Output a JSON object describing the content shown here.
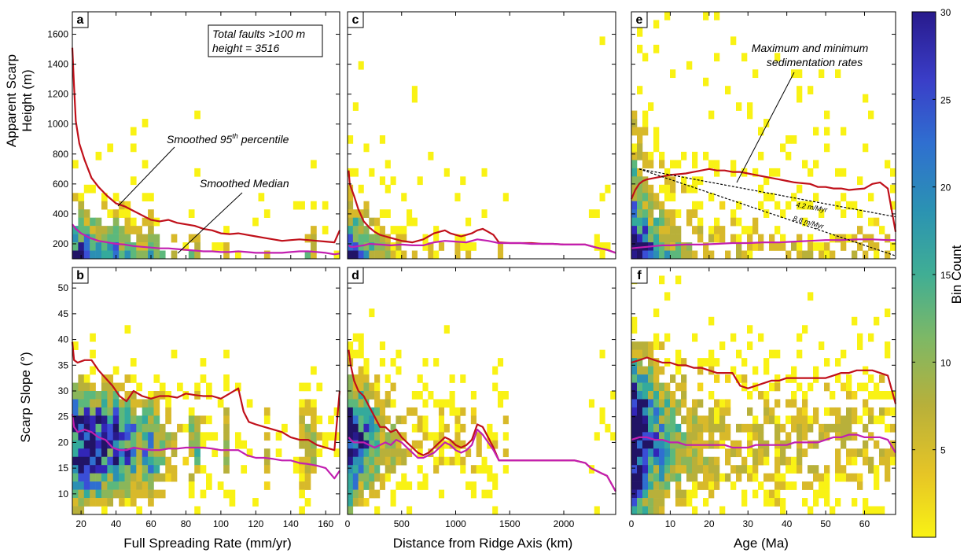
{
  "colors": {
    "p95": "#c0101a",
    "median": "#c21fb0",
    "colormap": [
      "#f9f214",
      "#f2d51c",
      "#d8b92a",
      "#b8b03a",
      "#8ab65a",
      "#5cb87c",
      "#34aa9c",
      "#2b8fb4",
      "#2f6fd0",
      "#3a4ed6",
      "#3226b8",
      "#281a8c",
      "#211466"
    ]
  },
  "colorbar": {
    "label": "Bin Count",
    "min": 0,
    "max": 30,
    "ticks": [
      "5",
      "10",
      "15",
      "20",
      "25",
      "30"
    ]
  },
  "axis_titles": {
    "top_ylabel_line1": "Apparent Scarp",
    "top_ylabel_line2": "Height (m)",
    "bottom_ylabel": "Scarp Slope (°)",
    "xlabel_left": "Full Spreading Rate (mm/yr)",
    "xlabel_mid": "Distance from Ridge Axis (km)",
    "xlabel_right": "Age (Ma)"
  },
  "panel_labels": [
    "a",
    "b",
    "c",
    "d",
    "e",
    "f"
  ],
  "annotations": {
    "total_line1": "Total faults >100 m",
    "total_line2": "height = 3516",
    "p95_text": "Smoothed 95",
    "p95_sup": "th",
    "p95_tail": " percentile",
    "median_text": "Smoothed Median",
    "sed_line1": "Maximum and minimum",
    "sed_line2": "sedimentation rates",
    "rate1": "4.2 m/Myr",
    "rate2": "8.8 m/Myr"
  },
  "chart_data": [
    {
      "panel": "a",
      "type": "heatmap",
      "xlabel": "",
      "ylabel": "Apparent Scarp Height (m)",
      "xlim": [
        15,
        168
      ],
      "ylim": [
        100,
        1750
      ],
      "xticks": [
        20,
        40,
        60,
        80,
        100,
        120,
        140,
        160
      ],
      "yticks": [
        200,
        400,
        600,
        800,
        1000,
        1200,
        1400,
        1600
      ],
      "series": [
        {
          "name": "Smoothed 95th percentile",
          "x": [
            15,
            16,
            17,
            19,
            22,
            26,
            30,
            35,
            40,
            45,
            50,
            55,
            60,
            65,
            70,
            75,
            80,
            85,
            90,
            95,
            100,
            105,
            110,
            115,
            120,
            125,
            130,
            135,
            140,
            145,
            150,
            155,
            160,
            165,
            168
          ],
          "y": [
            1510,
            1250,
            1020,
            870,
            760,
            640,
            580,
            520,
            470,
            450,
            420,
            390,
            360,
            350,
            360,
            340,
            330,
            320,
            300,
            290,
            270,
            265,
            270,
            260,
            250,
            240,
            230,
            220,
            225,
            230,
            225,
            220,
            215,
            210,
            290
          ]
        },
        {
          "name": "Smoothed Median",
          "x": [
            15,
            17,
            20,
            25,
            30,
            35,
            40,
            45,
            50,
            55,
            60,
            65,
            70,
            75,
            80,
            85,
            90,
            95,
            100,
            105,
            110,
            115,
            120,
            125,
            130,
            135,
            140,
            145,
            150,
            155,
            160,
            165,
            168
          ],
          "y": [
            330,
            300,
            270,
            240,
            220,
            210,
            200,
            195,
            185,
            180,
            175,
            170,
            170,
            165,
            160,
            155,
            150,
            150,
            145,
            145,
            150,
            145,
            140,
            140,
            140,
            140,
            145,
            150,
            150,
            145,
            140,
            130,
            135
          ]
        }
      ]
    },
    {
      "panel": "b",
      "type": "heatmap",
      "xlabel": "Full Spreading Rate (mm/yr)",
      "ylabel": "Scarp Slope (°)",
      "xlim": [
        15,
        168
      ],
      "ylim": [
        6,
        54
      ],
      "xticks": [
        20,
        40,
        60,
        80,
        100,
        120,
        140,
        160
      ],
      "yticks": [
        10,
        15,
        20,
        25,
        30,
        35,
        40,
        45,
        50
      ],
      "series": [
        {
          "name": "Smoothed 95th percentile",
          "x": [
            15,
            16,
            18,
            22,
            26,
            30,
            34,
            38,
            42,
            46,
            50,
            55,
            60,
            65,
            70,
            75,
            80,
            85,
            90,
            95,
            100,
            105,
            110,
            113,
            116,
            120,
            125,
            130,
            135,
            140,
            145,
            150,
            155,
            160,
            165,
            168
          ],
          "y": [
            39.5,
            36,
            35.5,
            36,
            36,
            34,
            32.5,
            31,
            29,
            28,
            30,
            29,
            28.5,
            29,
            29,
            28.7,
            29.5,
            29.2,
            29,
            29,
            28.5,
            29.5,
            30.5,
            26,
            24,
            23.5,
            23,
            22.5,
            22,
            21,
            20.5,
            20.5,
            19.5,
            19,
            18.5,
            30
          ]
        },
        {
          "name": "Smoothed Median",
          "x": [
            15,
            16,
            18,
            22,
            26,
            30,
            34,
            38,
            42,
            46,
            50,
            55,
            60,
            65,
            70,
            75,
            80,
            85,
            90,
            95,
            100,
            105,
            110,
            115,
            120,
            125,
            130,
            135,
            140,
            145,
            150,
            155,
            160,
            165,
            168
          ],
          "y": [
            25.5,
            23,
            22,
            22.5,
            22,
            21,
            20.5,
            19,
            18.5,
            18.5,
            19,
            18.7,
            18.5,
            18.5,
            18.8,
            18.8,
            19,
            19,
            19,
            18.8,
            18.5,
            18.5,
            18.5,
            17.5,
            17,
            17,
            16.8,
            16.5,
            16.5,
            16,
            15.8,
            15.5,
            15,
            13,
            14.5
          ]
        }
      ]
    },
    {
      "panel": "c",
      "type": "heatmap",
      "xlim": [
        0,
        2480
      ],
      "ylim": [
        100,
        1750
      ],
      "xticks": [
        0,
        500,
        1000,
        1500,
        2000
      ],
      "yticks": [],
      "series": [
        {
          "name": "Smoothed 95th percentile",
          "x": [
            10,
            20,
            40,
            60,
            100,
            150,
            200,
            250,
            300,
            350,
            400,
            450,
            500,
            550,
            600,
            650,
            700,
            750,
            800,
            850,
            900,
            950,
            1000,
            1050,
            1100,
            1150,
            1200,
            1250,
            1300,
            1350,
            1400,
            1500,
            1600,
            1700,
            1800,
            1900,
            2000,
            2100,
            2200,
            2300,
            2400,
            2480
          ],
          "y": [
            690,
            600,
            560,
            520,
            430,
            350,
            310,
            280,
            260,
            250,
            240,
            230,
            220,
            215,
            210,
            220,
            230,
            250,
            270,
            280,
            290,
            270,
            260,
            250,
            260,
            270,
            290,
            300,
            280,
            260,
            210,
            205,
            205,
            205,
            200,
            200,
            195,
            195,
            195,
            175,
            160,
            140
          ]
        },
        {
          "name": "Smoothed Median",
          "x": [
            10,
            30,
            60,
            100,
            150,
            200,
            300,
            400,
            500,
            600,
            700,
            800,
            900,
            1000,
            1100,
            1200,
            1300,
            1400,
            1500,
            1600,
            1700,
            1800,
            1900,
            2000,
            2100,
            2200,
            2300,
            2400,
            2480
          ],
          "y": [
            190,
            180,
            180,
            185,
            190,
            200,
            195,
            190,
            195,
            190,
            190,
            210,
            220,
            215,
            210,
            230,
            220,
            205,
            205,
            205,
            200,
            200,
            200,
            195,
            195,
            195,
            175,
            160,
            140
          ]
        }
      ]
    },
    {
      "panel": "d",
      "type": "heatmap",
      "xlabel": "Distance from Ridge Axis (km)",
      "xlim": [
        0,
        2480
      ],
      "ylim": [
        6,
        54
      ],
      "xticks": [
        0,
        500,
        1000,
        1500,
        2000
      ],
      "yticks": [],
      "series": [
        {
          "name": "Smoothed 95th percentile",
          "x": [
            10,
            30,
            60,
            100,
            150,
            200,
            250,
            300,
            350,
            400,
            450,
            500,
            550,
            600,
            650,
            700,
            750,
            800,
            850,
            900,
            950,
            1000,
            1050,
            1100,
            1150,
            1200,
            1250,
            1300,
            1350,
            1400,
            1500,
            1600,
            1700,
            1800,
            1900,
            2000,
            2100,
            2200,
            2250,
            2300,
            2350,
            2400,
            2480
          ],
          "y": [
            38,
            35,
            32,
            30,
            29,
            27,
            25,
            23,
            23,
            22,
            22.5,
            21,
            20,
            19,
            18,
            17.5,
            18,
            19,
            20,
            21,
            20.5,
            19.5,
            19,
            19.5,
            20.5,
            23.5,
            23,
            21,
            19,
            16.5,
            16.5,
            16.5,
            16.5,
            16.5,
            16.5,
            16.5,
            16.5,
            16,
            15,
            14.5,
            14,
            13.5,
            10.5
          ]
        },
        {
          "name": "Smoothed Median",
          "x": [
            10,
            30,
            60,
            100,
            150,
            200,
            250,
            300,
            350,
            400,
            450,
            500,
            550,
            600,
            650,
            700,
            750,
            800,
            850,
            900,
            950,
            1000,
            1050,
            1100,
            1150,
            1200,
            1250,
            1300,
            1350,
            1400,
            1500,
            1600,
            1700,
            1800,
            1900,
            2000,
            2100,
            2200,
            2250,
            2300,
            2350,
            2400,
            2480
          ],
          "y": [
            21,
            20.5,
            20,
            20,
            20,
            19.5,
            19,
            19.5,
            20,
            19.5,
            20.5,
            20,
            19,
            18,
            17,
            17,
            17.5,
            18,
            19,
            20,
            19.5,
            18.5,
            18,
            18.5,
            19.5,
            22.5,
            21.5,
            20,
            18.5,
            16.5,
            16.5,
            16.5,
            16.5,
            16.5,
            16.5,
            16.5,
            16.5,
            16,
            15,
            14.5,
            14,
            13.5,
            10.5
          ]
        }
      ]
    },
    {
      "panel": "e",
      "type": "heatmap",
      "xlim": [
        0,
        68
      ],
      "ylim": [
        100,
        1750
      ],
      "xticks": [
        0,
        10,
        20,
        30,
        40,
        50,
        60
      ],
      "yticks": [],
      "series": [
        {
          "name": "Smoothed 95th percentile",
          "x": [
            0,
            1,
            2,
            3,
            4,
            6,
            8,
            10,
            12,
            14,
            16,
            18,
            20,
            22,
            24,
            26,
            28,
            30,
            32,
            34,
            36,
            38,
            40,
            42,
            44,
            46,
            48,
            50,
            52,
            54,
            56,
            58,
            60,
            62,
            64,
            66,
            68
          ],
          "y": [
            500,
            560,
            600,
            620,
            630,
            640,
            650,
            660,
            665,
            670,
            680,
            690,
            700,
            690,
            690,
            680,
            680,
            670,
            660,
            650,
            640,
            630,
            620,
            610,
            605,
            600,
            580,
            580,
            570,
            570,
            560,
            565,
            570,
            600,
            610,
            570,
            280
          ]
        },
        {
          "name": "Smoothed Median",
          "x": [
            0,
            2,
            4,
            6,
            8,
            10,
            14,
            18,
            22,
            26,
            30,
            34,
            38,
            42,
            46,
            50,
            54,
            58,
            62,
            66,
            68
          ],
          "y": [
            170,
            175,
            180,
            185,
            190,
            190,
            195,
            195,
            200,
            205,
            205,
            210,
            210,
            215,
            220,
            225,
            225,
            230,
            230,
            225,
            225
          ]
        },
        {
          "name": "4.2 m/Myr",
          "x": [
            2,
            68
          ],
          "y": [
            700,
            380
          ]
        },
        {
          "name": "8.8 m/Myr",
          "x": [
            2,
            68
          ],
          "y": [
            700,
            120
          ]
        }
      ]
    },
    {
      "panel": "f",
      "type": "heatmap",
      "xlabel": "Age (Ma)",
      "xlim": [
        0,
        68
      ],
      "ylim": [
        6,
        54
      ],
      "xticks": [
        0,
        10,
        20,
        30,
        40,
        50,
        60
      ],
      "yticks": [],
      "series": [
        {
          "name": "Smoothed 95th percentile",
          "x": [
            0,
            2,
            4,
            6,
            8,
            10,
            12,
            14,
            16,
            18,
            20,
            22,
            24,
            26,
            28,
            30,
            32,
            34,
            36,
            38,
            40,
            42,
            44,
            46,
            48,
            50,
            52,
            54,
            56,
            58,
            60,
            62,
            64,
            66,
            68
          ],
          "y": [
            35.5,
            36,
            36.5,
            36,
            35.5,
            35.5,
            35,
            35,
            34.5,
            34.5,
            34,
            33.5,
            33.5,
            33.5,
            31,
            30.5,
            31,
            31.5,
            32,
            32,
            32.5,
            32.5,
            32.5,
            32.5,
            32.5,
            32.5,
            33,
            33.5,
            33.5,
            34,
            34,
            34,
            33.5,
            33,
            27.5
          ]
        },
        {
          "name": "Smoothed Median",
          "x": [
            0,
            2,
            4,
            6,
            8,
            10,
            12,
            14,
            16,
            18,
            20,
            22,
            24,
            26,
            28,
            30,
            32,
            34,
            36,
            38,
            40,
            42,
            44,
            46,
            48,
            50,
            52,
            54,
            56,
            58,
            60,
            62,
            64,
            66,
            68
          ],
          "y": [
            20.5,
            21,
            21,
            20.5,
            20.5,
            20,
            20,
            19.5,
            19.5,
            19.5,
            19.5,
            19.5,
            19.5,
            19,
            19,
            19,
            19.5,
            19.5,
            19.5,
            19.5,
            19.5,
            20,
            20,
            20,
            20,
            20.5,
            21,
            21,
            21.5,
            21.5,
            21,
            21,
            21,
            20.5,
            18
          ]
        }
      ]
    }
  ]
}
